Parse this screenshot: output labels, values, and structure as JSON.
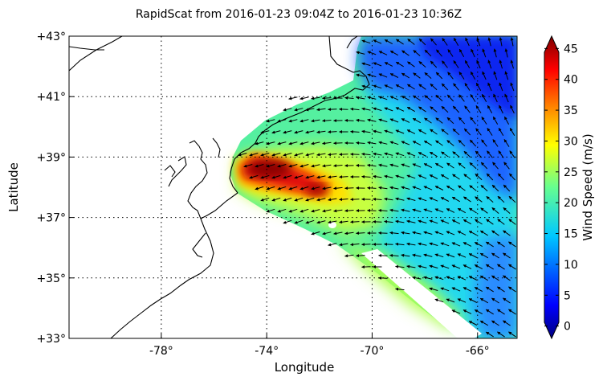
{
  "title": "RapidScat  from 2016-01-23 09:04Z to 2016-01-23 10:36Z",
  "map": {
    "xlabel": "Longitude",
    "ylabel": "Latitude",
    "lon_range": [
      -81.5,
      -64.5
    ],
    "lat_range": [
      33,
      43
    ],
    "lon_ticks": [
      {
        "value": -78,
        "label": "-78°"
      },
      {
        "value": -74,
        "label": "-74°"
      },
      {
        "value": -70,
        "label": "-70°"
      },
      {
        "value": -66,
        "label": "-66°"
      }
    ],
    "lat_ticks": [
      {
        "value": 43,
        "label": "+43°"
      },
      {
        "value": 41,
        "label": "+41°"
      },
      {
        "value": 39,
        "label": "+39°"
      },
      {
        "value": 37,
        "label": "+37°"
      },
      {
        "value": 35,
        "label": "+35°"
      },
      {
        "value": 33,
        "label": "+33°"
      }
    ],
    "grid": true
  },
  "colorbar": {
    "label": "Wind Speed (m/s)",
    "range": [
      -2,
      47
    ],
    "colormap": "jet",
    "ticks": [
      {
        "value": 0,
        "label": "0"
      },
      {
        "value": 5,
        "label": "5"
      },
      {
        "value": 10,
        "label": "10"
      },
      {
        "value": 15,
        "label": "15"
      },
      {
        "value": 20,
        "label": "20"
      },
      {
        "value": 25,
        "label": "25"
      },
      {
        "value": 30,
        "label": "30"
      },
      {
        "value": 35,
        "label": "35"
      },
      {
        "value": 40,
        "label": "40"
      },
      {
        "value": 45,
        "label": "45"
      }
    ]
  }
}
